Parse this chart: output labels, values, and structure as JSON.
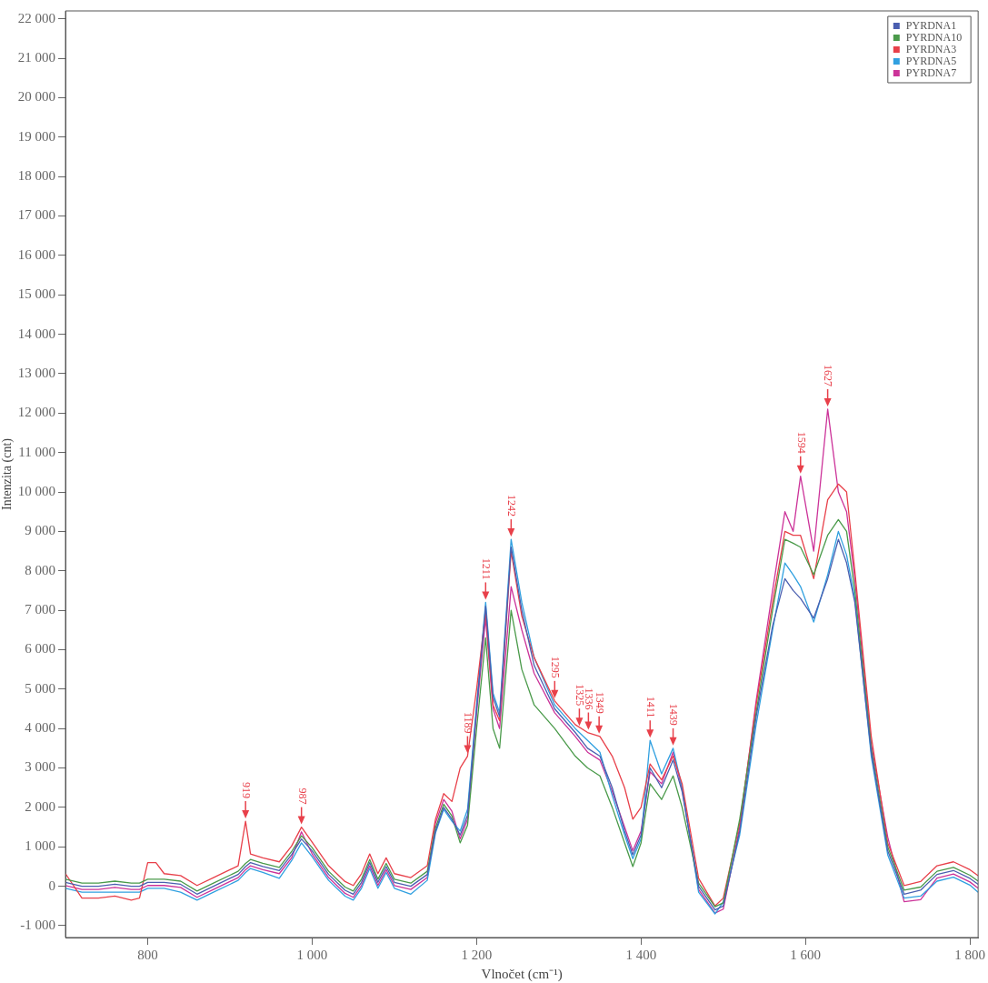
{
  "chart_data": {
    "type": "line",
    "xlabel": "Vlnočet (cm⁻¹)",
    "ylabel": "Intenzita (cnt)",
    "x": [
      700,
      720,
      740,
      760,
      780,
      790,
      800,
      810,
      820,
      840,
      860,
      880,
      900,
      910,
      919,
      925,
      940,
      960,
      975,
      987,
      1000,
      1020,
      1040,
      1050,
      1060,
      1070,
      1080,
      1090,
      1100,
      1120,
      1140,
      1150,
      1160,
      1170,
      1180,
      1189,
      1200,
      1211,
      1220,
      1228,
      1242,
      1255,
      1270,
      1295,
      1320,
      1335,
      1350,
      1365,
      1380,
      1390,
      1400,
      1411,
      1425,
      1439,
      1450,
      1470,
      1490,
      1500,
      1520,
      1540,
      1560,
      1575,
      1585,
      1594,
      1610,
      1627,
      1640,
      1650,
      1660,
      1680,
      1700,
      1720,
      1740,
      1760,
      1780,
      1800,
      1810
    ],
    "series": [
      {
        "name": "PYRDNA1",
        "color": "#4a5fb0",
        "values": [
          100,
          0,
          0,
          50,
          0,
          0,
          100,
          100,
          100,
          50,
          -200,
          0,
          200,
          300,
          500,
          600,
          500,
          400,
          800,
          1200,
          900,
          300,
          -100,
          -200,
          100,
          600,
          100,
          500,
          100,
          0,
          300,
          1400,
          2000,
          1700,
          1300,
          1800,
          4500,
          7100,
          4800,
          4300,
          8600,
          7000,
          5600,
          4500,
          3900,
          3500,
          3300,
          2500,
          1400,
          800,
          1300,
          3000,
          2500,
          3200,
          2400,
          0,
          -600,
          -500,
          1400,
          4300,
          6600,
          7800,
          7500,
          7300,
          6800,
          7800,
          8800,
          8200,
          7200,
          3400,
          900,
          -200,
          -100,
          300,
          400,
          200,
          50
        ]
      },
      {
        "name": "PYRDNA10",
        "color": "#4a9a4a",
        "values": [
          180,
          80,
          80,
          130,
          80,
          80,
          180,
          180,
          180,
          130,
          -120,
          80,
          280,
          380,
          580,
          680,
          580,
          480,
          880,
          1280,
          980,
          380,
          -20,
          -120,
          180,
          680,
          180,
          580,
          180,
          80,
          380,
          1480,
          2080,
          1780,
          1100,
          1550,
          4000,
          6300,
          4000,
          3500,
          7000,
          5500,
          4600,
          4000,
          3300,
          3000,
          2800,
          2000,
          1100,
          500,
          1100,
          2600,
          2200,
          2800,
          2000,
          80,
          -520,
          -420,
          1700,
          4400,
          7000,
          8800,
          8700,
          8600,
          7900,
          8900,
          9300,
          9000,
          7500,
          3500,
          1000,
          -100,
          -20,
          380,
          480,
          280,
          130
        ]
      },
      {
        "name": "PYRDNA3",
        "color": "#e8404a",
        "values": [
          320,
          -300,
          -300,
          -250,
          -350,
          -300,
          600,
          600,
          320,
          270,
          20,
          220,
          420,
          520,
          1650,
          820,
          720,
          620,
          1020,
          1500,
          1120,
          520,
          120,
          20,
          320,
          820,
          320,
          720,
          320,
          220,
          520,
          1700,
          2350,
          2150,
          3000,
          3300,
          5000,
          6950,
          4600,
          4200,
          8500,
          6850,
          5800,
          4700,
          4100,
          3900,
          3800,
          3300,
          2500,
          1700,
          2000,
          3100,
          2700,
          3300,
          2600,
          200,
          -500,
          -300,
          1600,
          4600,
          7200,
          9000,
          8900,
          8900,
          7800,
          9800,
          10200,
          10000,
          8000,
          3800,
          1100,
          20,
          120,
          520,
          620,
          420,
          270
        ]
      },
      {
        "name": "PYRDNA5",
        "color": "#30a0e0",
        "values": [
          -50,
          -150,
          -150,
          -150,
          -150,
          -150,
          -50,
          -50,
          -50,
          -150,
          -350,
          -150,
          50,
          150,
          350,
          450,
          350,
          200,
          650,
          1100,
          750,
          150,
          -250,
          -350,
          -50,
          450,
          -50,
          350,
          -50,
          -200,
          150,
          1350,
          1950,
          1650,
          1400,
          1950,
          4600,
          7200,
          4900,
          4400,
          8800,
          7200,
          5800,
          4600,
          4000,
          3700,
          3400,
          2300,
          1300,
          700,
          1200,
          3700,
          2850,
          3500,
          2500,
          -150,
          -700,
          -400,
          1300,
          4100,
          6500,
          8200,
          7900,
          7600,
          6700,
          7900,
          9000,
          8400,
          7300,
          3300,
          800,
          -300,
          -250,
          130,
          230,
          30,
          -150
        ]
      },
      {
        "name": "PYRDNA7",
        "color": "#cc3399",
        "values": [
          20,
          -80,
          -80,
          -30,
          -80,
          -80,
          20,
          20,
          20,
          -30,
          -280,
          -80,
          120,
          220,
          420,
          520,
          420,
          320,
          720,
          1380,
          820,
          220,
          -180,
          -280,
          20,
          520,
          20,
          420,
          20,
          -80,
          220,
          1600,
          2200,
          1900,
          1200,
          1700,
          4400,
          6800,
          4500,
          4000,
          7600,
          6500,
          5400,
          4400,
          3800,
          3400,
          3200,
          2400,
          1500,
          900,
          1400,
          2900,
          2600,
          3400,
          2450,
          -80,
          -680,
          -580,
          1500,
          4700,
          7500,
          9500,
          9000,
          10400,
          8500,
          12100,
          10000,
          9500,
          7800,
          3600,
          1250,
          -390,
          -340,
          210,
          310,
          110,
          -50
        ]
      }
    ],
    "xlim": [
      700,
      1810
    ],
    "xticks": [
      {
        "value": 800,
        "label": "800"
      },
      {
        "value": 1000,
        "label": "1 000"
      },
      {
        "value": 1200,
        "label": "1 200"
      },
      {
        "value": 1400,
        "label": "1 400"
      },
      {
        "value": 1600,
        "label": "1 600"
      },
      {
        "value": 1800,
        "label": "1 800"
      }
    ],
    "ylim": [
      -1300,
      22200
    ],
    "yticks": [
      {
        "value": -1000,
        "label": "-1 000"
      },
      {
        "value": 0,
        "label": "0"
      },
      {
        "value": 1000,
        "label": "1 000"
      },
      {
        "value": 2000,
        "label": "2 000"
      },
      {
        "value": 3000,
        "label": "3 000"
      },
      {
        "value": 4000,
        "label": "4 000"
      },
      {
        "value": 5000,
        "label": "5 000"
      },
      {
        "value": 6000,
        "label": "6 000"
      },
      {
        "value": 7000,
        "label": "7 000"
      },
      {
        "value": 8000,
        "label": "8 000"
      },
      {
        "value": 9000,
        "label": "9 000"
      },
      {
        "value": 10000,
        "label": "10 000"
      },
      {
        "value": 11000,
        "label": "11 000"
      },
      {
        "value": 12000,
        "label": "12 000"
      },
      {
        "value": 13000,
        "label": "13 000"
      },
      {
        "value": 14000,
        "label": "14 000"
      },
      {
        "value": 15000,
        "label": "15 000"
      },
      {
        "value": 16000,
        "label": "16 000"
      },
      {
        "value": 17000,
        "label": "17 000"
      },
      {
        "value": 18000,
        "label": "18 000"
      },
      {
        "value": 19000,
        "label": "19 000"
      },
      {
        "value": 20000,
        "label": "20 000"
      },
      {
        "value": 21000,
        "label": "21 000"
      },
      {
        "value": 22000,
        "label": "22 000"
      }
    ],
    "annotations": [
      {
        "text": "919",
        "x": 919,
        "y": 1650
      },
      {
        "text": "987",
        "x": 987,
        "y": 1500
      },
      {
        "text": "1189",
        "x": 1189,
        "y": 3300
      },
      {
        "text": "1211",
        "x": 1211,
        "y": 7200
      },
      {
        "text": "1242",
        "x": 1242,
        "y": 8800
      },
      {
        "text": "1295",
        "x": 1295,
        "y": 4700
      },
      {
        "text": "1325",
        "x": 1325,
        "y": 4000
      },
      {
        "text": "1336",
        "x": 1336,
        "y": 3900
      },
      {
        "text": "1349",
        "x": 1349,
        "y": 3800
      },
      {
        "text": "1411",
        "x": 1411,
        "y": 3700
      },
      {
        "text": "1439",
        "x": 1439,
        "y": 3500
      },
      {
        "text": "1594",
        "x": 1594,
        "y": 10400
      },
      {
        "text": "1627",
        "x": 1627,
        "y": 12100
      }
    ],
    "grid": false,
    "legend": "top right",
    "marker": "none",
    "line_style": "solid"
  }
}
